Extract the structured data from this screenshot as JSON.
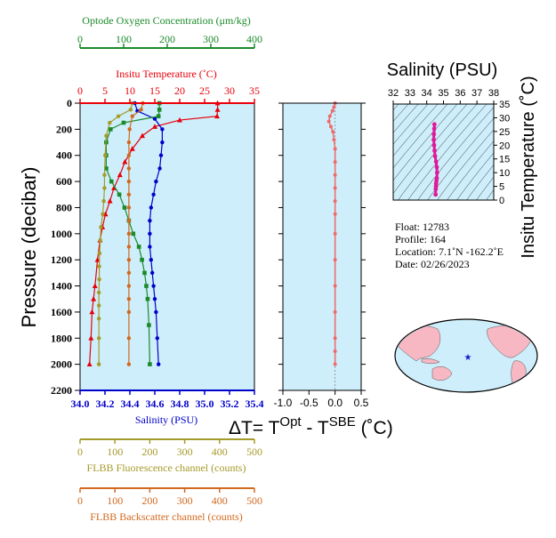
{
  "colors": {
    "panel_bg": "#cdeefa",
    "temperature": "#e8000b",
    "salinity": "#0000cc",
    "oxygen": "#1a8a2a",
    "fluorescence": "#a59a2a",
    "backscatter": "#d2691e",
    "delta_t": "#f06a6a",
    "magenta": "#e0189a"
  },
  "chart_data": [
    {
      "type": "line",
      "ylabel": "Pressure (decibar)",
      "ylim": [
        2200,
        0
      ],
      "y_ticks": [
        "0",
        "200",
        "400",
        "600",
        "800",
        "1000",
        "1200",
        "1400",
        "1600",
        "1800",
        "2000",
        "2200"
      ],
      "axes": {
        "oxygen": {
          "label": "Optode Oxygen Concentration (μm/kg)",
          "lim": [
            0,
            400
          ],
          "ticks": [
            "0",
            "100",
            "200",
            "300",
            "400"
          ]
        },
        "temperature": {
          "label": "Insitu Temperature (˚C)",
          "lim": [
            0,
            35
          ],
          "ticks": [
            "0",
            "5",
            "10",
            "15",
            "20",
            "25",
            "30",
            "35"
          ]
        },
        "salinity": {
          "label": "Salinity (PSU)",
          "lim": [
            34.0,
            35.4
          ],
          "ticks": [
            "34.0",
            "34.2",
            "34.4",
            "34.6",
            "34.8",
            "35.0",
            "35.2",
            "35.4"
          ]
        },
        "fluorescence": {
          "label": "FLBB Fluorescence channel (counts)",
          "lim": [
            0,
            500
          ],
          "ticks": [
            "0",
            "100",
            "200",
            "300",
            "400",
            "500"
          ]
        },
        "backscatter": {
          "label": "FLBB Backscatter channel (counts)",
          "lim": [
            0,
            500
          ],
          "ticks": [
            "0",
            "100",
            "200",
            "300",
            "400",
            "500"
          ]
        }
      },
      "series": [
        {
          "key": "temperature",
          "marker": "triangle",
          "x": [
            27.6,
            27.6,
            27.5,
            20,
            15,
            12.5,
            10.5,
            9.0,
            8.0,
            6.8,
            6.0,
            5.1,
            4.5,
            4.0,
            3.5,
            3.0,
            2.7,
            2.4,
            2.2,
            1.9
          ],
          "y": [
            0,
            50,
            100,
            130,
            180,
            250,
            350,
            450,
            550,
            650,
            750,
            850,
            950,
            1050,
            1200,
            1400,
            1500,
            1600,
            1800,
            2000
          ]
        },
        {
          "key": "salinity",
          "marker": "circle",
          "x": [
            34.44,
            34.46,
            34.6,
            34.66,
            34.66,
            34.65,
            34.64,
            34.61,
            34.59,
            34.57,
            34.56,
            34.56,
            34.56,
            34.57,
            34.58,
            34.59,
            34.6,
            34.61,
            34.62,
            34.63
          ],
          "y": [
            0,
            60,
            120,
            200,
            300,
            400,
            500,
            600,
            700,
            800,
            900,
            1000,
            1100,
            1200,
            1300,
            1400,
            1500,
            1600,
            1800,
            2000
          ]
        },
        {
          "key": "oxygen",
          "marker": "square",
          "x": [
            182,
            182,
            180,
            100,
            70,
            60,
            60,
            60,
            72,
            90,
            102,
            112,
            122,
            135,
            142,
            148,
            152,
            155,
            158,
            160
          ],
          "y": [
            0,
            50,
            100,
            150,
            200,
            300,
            400,
            500,
            600,
            700,
            800,
            900,
            1000,
            1100,
            1200,
            1300,
            1400,
            1500,
            1700,
            2000
          ]
        },
        {
          "key": "fluorescence",
          "marker": "circle",
          "x": [
            150,
            145,
            110,
            85,
            75,
            72,
            70,
            70,
            68,
            65,
            60,
            58,
            56,
            55,
            55,
            54,
            54,
            54,
            54,
            54
          ],
          "y": [
            0,
            50,
            100,
            150,
            250,
            400,
            550,
            650,
            750,
            850,
            950,
            1050,
            1150,
            1250,
            1350,
            1450,
            1550,
            1650,
            1800,
            2000
          ]
        },
        {
          "key": "backscatter",
          "marker": "circle",
          "x": [
            180,
            175,
            150,
            142,
            140,
            140,
            140,
            140,
            140,
            140,
            140,
            140,
            140,
            140,
            140,
            140,
            140,
            140,
            140,
            140
          ],
          "y": [
            0,
            50,
            100,
            200,
            300,
            400,
            500,
            600,
            700,
            800,
            900,
            1000,
            1100,
            1200,
            1300,
            1400,
            1500,
            1600,
            1800,
            2000
          ]
        }
      ]
    },
    {
      "type": "line",
      "title": "ΔT= T^Opt - T^SBE (˚C)",
      "xlim": [
        -1.0,
        0.5
      ],
      "x_ticks": [
        "-1.0",
        "-0.5",
        "0.0",
        "0.5"
      ],
      "series": [
        {
          "key": "delta_t",
          "marker": "circle",
          "x": [
            0.0,
            -0.02,
            -0.05,
            -0.1,
            -0.12,
            -0.08,
            -0.04,
            -0.02,
            0.0,
            0.0,
            0.0,
            0.0,
            0.0,
            0.0,
            0.0,
            0.0,
            0.0,
            0.0,
            0.0,
            0.0,
            0.0
          ],
          "y": [
            0,
            30,
            60,
            100,
            140,
            180,
            220,
            280,
            350,
            450,
            550,
            650,
            750,
            850,
            1000,
            1200,
            1400,
            1600,
            1800,
            1900,
            2000
          ]
        }
      ]
    },
    {
      "type": "scatter",
      "xlabel": "Salinity (PSU)",
      "ylabel": "Insitu Temperature (˚C)",
      "xlim": [
        32,
        38
      ],
      "ylim": [
        0,
        35
      ],
      "x_ticks": [
        "32",
        "33",
        "34",
        "35",
        "36",
        "37",
        "38"
      ],
      "y_ticks": [
        "0",
        "5",
        "10",
        "15",
        "20",
        "25",
        "30",
        "35"
      ],
      "series": [
        {
          "key": "magenta",
          "x": [
            34.46,
            34.45,
            34.43,
            34.42,
            34.44,
            34.47,
            34.5,
            34.56,
            34.6,
            34.62,
            34.6,
            34.58,
            34.56,
            34.55,
            34.54,
            34.53
          ],
          "y": [
            27.6,
            26,
            24,
            22,
            20,
            18,
            16,
            14,
            12,
            10,
            8,
            7,
            6,
            5,
            4,
            2
          ]
        }
      ]
    }
  ],
  "info": {
    "float": "Float:  12783",
    "profile": "Profile:  164",
    "location": "Location:  7.1˚N  -162.2˚E",
    "date": "Date:  02/26/2023"
  }
}
